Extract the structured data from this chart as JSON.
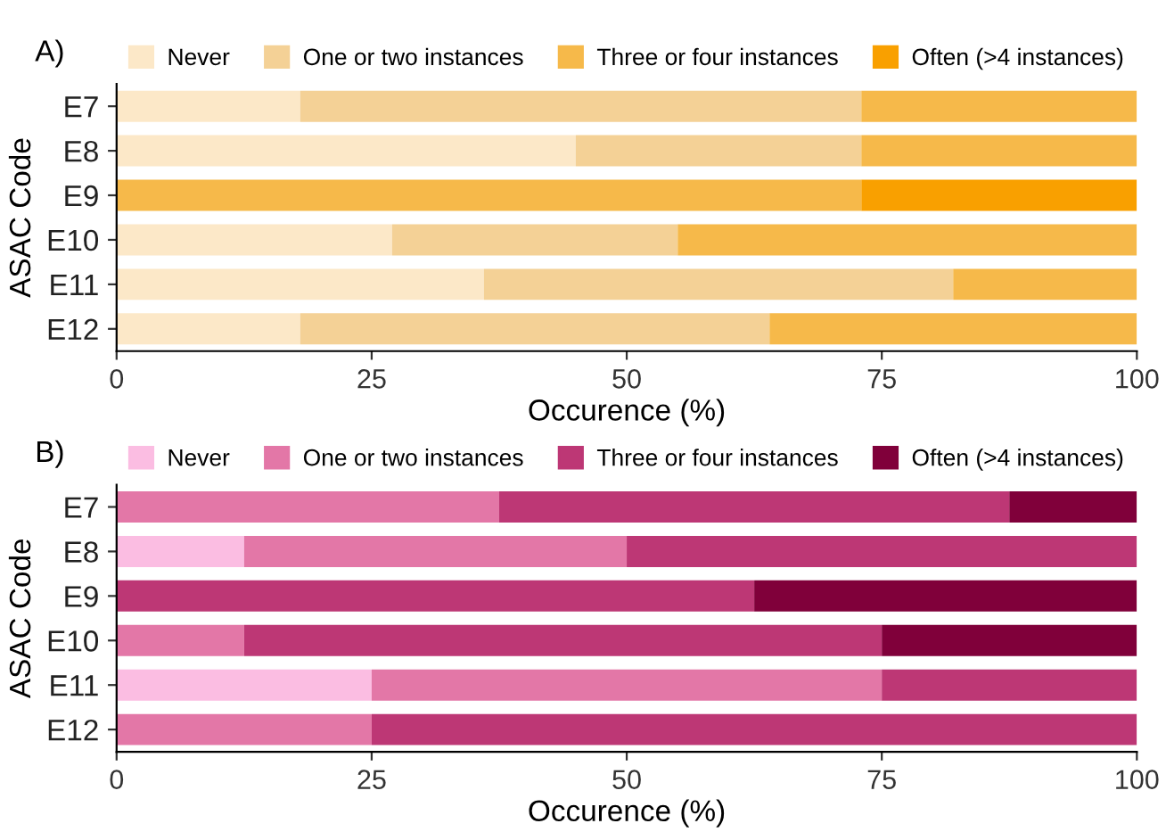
{
  "chart_data": [
    {
      "type": "bar",
      "title": "A)",
      "orientation": "horizontal",
      "stacked": true,
      "xlabel": "Occurence (%)",
      "ylabel": "ASAC Code",
      "categories": [
        "E7",
        "E8",
        "E9",
        "E10",
        "E11",
        "E12"
      ],
      "xlim": [
        0,
        100
      ],
      "xticks": [
        0,
        25,
        50,
        75,
        100
      ],
      "grid": false,
      "legend": "top",
      "series": [
        {
          "name": "Never",
          "color": "#fce8c8",
          "values": [
            18,
            45,
            0,
            27,
            36,
            18
          ]
        },
        {
          "name": "One or two instances",
          "color": "#f4d196",
          "values": [
            55,
            28,
            0,
            28,
            46,
            46
          ]
        },
        {
          "name": "Three or four instances",
          "color": "#f6b94a",
          "values": [
            27,
            27,
            73,
            45,
            18,
            36
          ]
        },
        {
          "name": "Often (>4 instances)",
          "color": "#f9a000",
          "values": [
            0,
            0,
            27,
            0,
            0,
            0
          ]
        }
      ]
    },
    {
      "type": "bar",
      "title": "B)",
      "orientation": "horizontal",
      "stacked": true,
      "xlabel": "Occurence (%)",
      "ylabel": "ASAC Code",
      "categories": [
        "E7",
        "E8",
        "E9",
        "E10",
        "E11",
        "E12"
      ],
      "xlim": [
        0,
        100
      ],
      "xticks": [
        0,
        25,
        50,
        75,
        100
      ],
      "grid": false,
      "legend": "top",
      "series": [
        {
          "name": "Never",
          "color": "#fbbde2",
          "values": [
            0,
            12.5,
            0,
            0,
            25,
            0
          ]
        },
        {
          "name": "One or two instances",
          "color": "#e377a7",
          "values": [
            37.5,
            37.5,
            0,
            12.5,
            50,
            25
          ]
        },
        {
          "name": "Three or four instances",
          "color": "#bd3775",
          "values": [
            50,
            50,
            62.5,
            62.5,
            25,
            75
          ]
        },
        {
          "name": "Often (>4 instances)",
          "color": "#80003a",
          "values": [
            12.5,
            0,
            37.5,
            25,
            0,
            0
          ]
        }
      ]
    }
  ]
}
